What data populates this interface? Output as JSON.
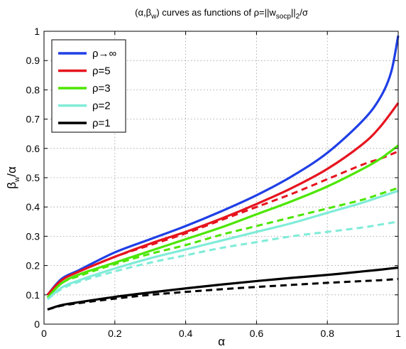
{
  "chart_data": {
    "type": "line",
    "title_parts": {
      "open": "(",
      "alpha": "α",
      "comma": ",",
      "beta": "β",
      "beta_sub": "w",
      "rest": ") curves as functions of ρ=||w",
      "w_sub": "socp",
      "norm_end": "||",
      "norm_sub": "2",
      "tail": "/σ"
    },
    "xlabel": "α",
    "ylabel_parts": {
      "beta": "β",
      "sub": "w",
      "rest": "/α"
    },
    "xlim": [
      0,
      1
    ],
    "ylim": [
      0,
      1
    ],
    "x_ticks": [
      "0",
      "0.2",
      "0.4",
      "0.6",
      "0.8",
      "1"
    ],
    "y_ticks": [
      "0",
      "0.1",
      "0.2",
      "0.3",
      "0.4",
      "0.5",
      "0.6",
      "0.7",
      "0.8",
      "0.9",
      "1"
    ],
    "grid": true,
    "legend_position": "top-left",
    "series": [
      {
        "name": "ρ→∞",
        "color": "#1f3fe6",
        "x": [
          0.01,
          0.05,
          0.1,
          0.2,
          0.3,
          0.4,
          0.5,
          0.6,
          0.7,
          0.8,
          0.9,
          0.95,
          0.98,
          1.0
        ],
        "y": [
          0.1,
          0.155,
          0.185,
          0.245,
          0.29,
          0.335,
          0.385,
          0.44,
          0.505,
          0.585,
          0.695,
          0.775,
          0.86,
          0.985
        ],
        "dashed_y": null
      },
      {
        "name": "ρ=5",
        "color": "#e6141e",
        "x": [
          0.01,
          0.05,
          0.1,
          0.2,
          0.3,
          0.4,
          0.5,
          0.6,
          0.7,
          0.8,
          0.9,
          0.95,
          1.0
        ],
        "y": [
          0.1,
          0.15,
          0.18,
          0.23,
          0.275,
          0.315,
          0.36,
          0.41,
          0.465,
          0.53,
          0.615,
          0.675,
          0.755
        ],
        "dashed_y": [
          0.1,
          0.15,
          0.18,
          0.23,
          0.27,
          0.31,
          0.355,
          0.4,
          0.445,
          0.495,
          0.545,
          0.565,
          0.59
        ]
      },
      {
        "name": "ρ=3",
        "color": "#4ce600",
        "x": [
          0.01,
          0.05,
          0.1,
          0.2,
          0.3,
          0.4,
          0.5,
          0.6,
          0.7,
          0.8,
          0.9,
          0.95,
          1.0
        ],
        "y": [
          0.09,
          0.14,
          0.17,
          0.21,
          0.25,
          0.29,
          0.33,
          0.375,
          0.42,
          0.47,
          0.53,
          0.565,
          0.61
        ],
        "dashed_y": [
          0.09,
          0.14,
          0.165,
          0.205,
          0.24,
          0.27,
          0.305,
          0.335,
          0.365,
          0.395,
          0.425,
          0.445,
          0.465
        ]
      },
      {
        "name": "ρ=2",
        "color": "#7fecd8",
        "x": [
          0.01,
          0.05,
          0.1,
          0.2,
          0.3,
          0.4,
          0.5,
          0.6,
          0.7,
          0.8,
          0.9,
          0.95,
          1.0
        ],
        "y": [
          0.085,
          0.125,
          0.15,
          0.19,
          0.225,
          0.255,
          0.285,
          0.315,
          0.345,
          0.38,
          0.415,
          0.435,
          0.455
        ],
        "dashed_y": [
          0.085,
          0.12,
          0.145,
          0.18,
          0.21,
          0.235,
          0.26,
          0.28,
          0.3,
          0.315,
          0.33,
          0.34,
          0.35
        ]
      },
      {
        "name": "ρ=1",
        "color": "#000000",
        "x": [
          0.01,
          0.05,
          0.1,
          0.2,
          0.3,
          0.4,
          0.5,
          0.6,
          0.7,
          0.8,
          0.9,
          0.95,
          1.0
        ],
        "y": [
          0.05,
          0.065,
          0.075,
          0.093,
          0.108,
          0.122,
          0.135,
          0.147,
          0.158,
          0.168,
          0.18,
          0.186,
          0.193
        ],
        "dashed_y": [
          0.05,
          0.063,
          0.072,
          0.087,
          0.1,
          0.11,
          0.119,
          0.127,
          0.134,
          0.141,
          0.147,
          0.15,
          0.154
        ]
      }
    ]
  }
}
